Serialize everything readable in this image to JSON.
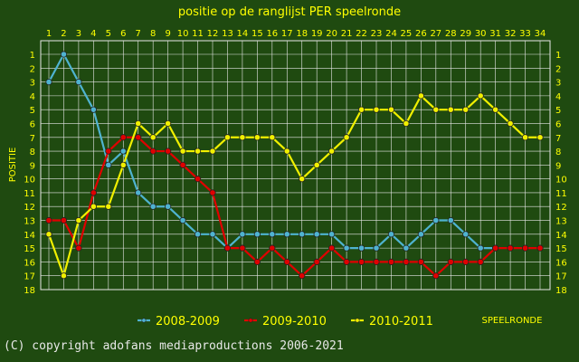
{
  "chart_data": {
    "type": "line",
    "title": "positie op de ranglijst PER speelronde",
    "xlabel": "SPEELRONDE",
    "ylabel": "POSITIE",
    "x": [
      1,
      2,
      3,
      4,
      5,
      6,
      7,
      8,
      9,
      10,
      11,
      12,
      13,
      14,
      15,
      16,
      17,
      18,
      19,
      20,
      21,
      22,
      23,
      24,
      25,
      26,
      27,
      28,
      29,
      30,
      31,
      32,
      33,
      34
    ],
    "xlim": [
      1,
      34
    ],
    "ylim": [
      1,
      18
    ],
    "y_inverted": true,
    "grid": true,
    "legend_position": "bottom",
    "colors": {
      "background": "#1f4a10",
      "grid": "#e8e8e8",
      "text": "#ffff00"
    },
    "series": [
      {
        "name": "2008-2009",
        "color": "#4fb3d0",
        "values": [
          3,
          1,
          3,
          5,
          9,
          8,
          11,
          12,
          12,
          13,
          14,
          14,
          15,
          14,
          14,
          14,
          14,
          14,
          14,
          14,
          15,
          15,
          15,
          14,
          15,
          14,
          13,
          13,
          14,
          15,
          15,
          null,
          null,
          null
        ]
      },
      {
        "name": "2009-2010",
        "color": "#e00000",
        "values": [
          13,
          13,
          15,
          11,
          8,
          7,
          7,
          8,
          8,
          9,
          10,
          11,
          15,
          15,
          16,
          15,
          16,
          17,
          16,
          15,
          16,
          16,
          16,
          16,
          16,
          16,
          17,
          16,
          16,
          16,
          15,
          15,
          15,
          15
        ]
      },
      {
        "name": "2010-2011",
        "color": "#f0f000",
        "values": [
          14,
          17,
          13,
          12,
          12,
          9,
          6,
          7,
          6,
          8,
          8,
          8,
          7,
          7,
          7,
          7,
          8,
          10,
          9,
          8,
          7,
          5,
          5,
          5,
          6,
          4,
          5,
          5,
          5,
          4,
          5,
          6,
          7,
          7
        ]
      }
    ]
  },
  "footer": {
    "copyright": "(C) copyright adofans mediaproductions 2006-2021"
  }
}
